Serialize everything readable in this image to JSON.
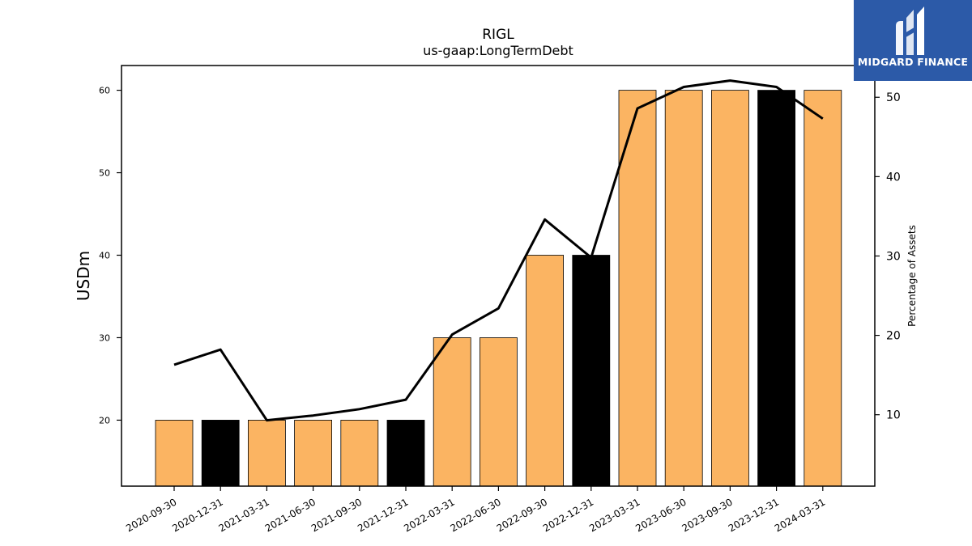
{
  "chart_data": {
    "type": "bar",
    "title": "RIGL",
    "subtitle": "us-gaap:LongTermDebt",
    "ylabel": "USDm",
    "ylabel_right": "Percentage of Assets",
    "categories": [
      "2020-09-30",
      "2020-12-31",
      "2021-03-31",
      "2021-06-30",
      "2021-09-30",
      "2021-12-31",
      "2022-03-31",
      "2022-06-30",
      "2022-09-30",
      "2022-12-31",
      "2023-03-31",
      "2023-06-30",
      "2023-09-30",
      "2023-12-31",
      "2024-03-31"
    ],
    "values": [
      20,
      20,
      20,
      20,
      20,
      20,
      30,
      30,
      40,
      40,
      60,
      60,
      60,
      60,
      60
    ],
    "bar_colors": [
      "#fbb462",
      "#000000",
      "#fbb462",
      "#fbb462",
      "#fbb462",
      "#000000",
      "#fbb462",
      "#fbb462",
      "#fbb462",
      "#000000",
      "#fbb462",
      "#fbb462",
      "#fbb462",
      "#000000",
      "#fbb462"
    ],
    "line_values": [
      16.3,
      18.2,
      9.3,
      9.9,
      10.7,
      11.9,
      20.1,
      23.4,
      34.6,
      29.8,
      48.6,
      51.3,
      52.1,
      51.3,
      47.3
    ],
    "line_color": "#000000",
    "ylim": [
      12,
      63
    ],
    "yticks": [
      20,
      30,
      40,
      50,
      60
    ],
    "ylim_right": [
      1,
      54
    ],
    "yticks_right": [
      10,
      20,
      30,
      40,
      50
    ]
  },
  "logo": {
    "text": "MIDGARD FINANCE",
    "background": "#2c5aa8"
  }
}
